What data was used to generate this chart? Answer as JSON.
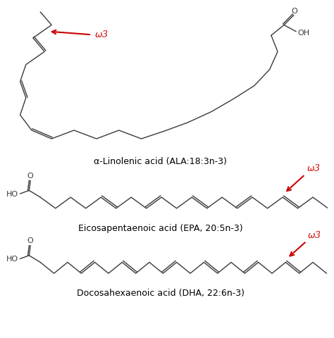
{
  "bg_color": "#ffffff",
  "line_color": "#3a3a3a",
  "red_color": "#cc0000",
  "title1": "α-Linolenic acid (ALA:18:3n-3)",
  "title2": "Eicosapentaenoic acid (EPA, 20:5n-3)",
  "title3": "Docosahexaenoic acid (DHA, 22:6n-3)",
  "omega_label": "ω3",
  "label_fontsize": 9,
  "omega_fontsize": 9
}
